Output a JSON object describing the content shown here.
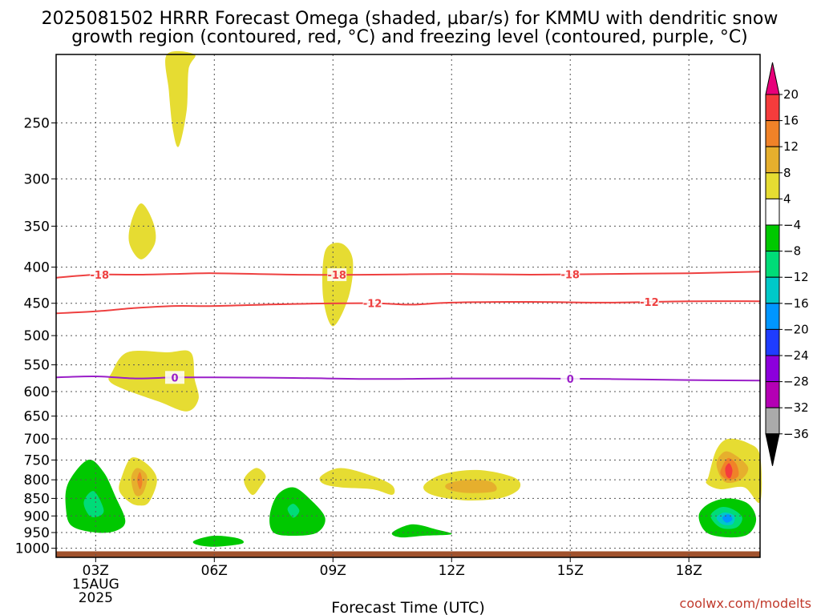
{
  "chart_data": {
    "type": "contour",
    "title_line1": "2025081502 HRRR Forecast Omega (shaded, µbar/s) for KMMU with dendritic snow",
    "title_line2": "growth region (contoured, red, °C) and freezing level (contoured, purple, °C)",
    "xlabel": "Forecast Time (UTC)",
    "credit": "coolwx.com/modelts",
    "x_ticks": [
      {
        "hour": 3,
        "label": "03Z",
        "sub1": "15AUG",
        "sub2": "2025"
      },
      {
        "hour": 6,
        "label": "06Z"
      },
      {
        "hour": 9,
        "label": "09Z"
      },
      {
        "hour": 12,
        "label": "12Z"
      },
      {
        "hour": 15,
        "label": "15Z"
      },
      {
        "hour": 18,
        "label": "18Z"
      }
    ],
    "x_range_hours": [
      2.0,
      19.8
    ],
    "y_ticks": [
      250,
      300,
      350,
      400,
      450,
      500,
      550,
      600,
      650,
      700,
      750,
      800,
      850,
      900,
      950,
      1000
    ],
    "y_range_hpa": [
      200,
      1030
    ],
    "y_scale": "log-pressure",
    "colorbar": {
      "levels": [
        "20",
        "16",
        "12",
        "8",
        "4",
        "−4",
        "−8",
        "−12",
        "−16",
        "−20",
        "−24",
        "−28",
        "−32",
        "−36"
      ],
      "colors": [
        "#e8007a",
        "#f53c3c",
        "#f08228",
        "#e6af2d",
        "#e6dc32",
        "#ffffff",
        "#00c800",
        "#00dc78",
        "#00c8c8",
        "#0096ff",
        "#1e3cff",
        "#8c00dc",
        "#b400b4",
        "#aaaaaa",
        "#000000"
      ]
    },
    "contours": [
      {
        "name": "dgz-minus18",
        "color": "#ee4040",
        "label": "-18",
        "points": [
          [
            2,
            414
          ],
          [
            3,
            410
          ],
          [
            4,
            410
          ],
          [
            5,
            409
          ],
          [
            6,
            408
          ],
          [
            8,
            410
          ],
          [
            10,
            410
          ],
          [
            12,
            409
          ],
          [
            14,
            410
          ],
          [
            16,
            409
          ],
          [
            18,
            408
          ],
          [
            19.8,
            406
          ]
        ],
        "label_hours": [
          3.1,
          9.1,
          15.0
        ]
      },
      {
        "name": "dgz-minus12",
        "color": "#ee4040",
        "label": "-12",
        "points": [
          [
            2,
            465
          ],
          [
            3,
            462
          ],
          [
            4,
            457
          ],
          [
            5,
            454
          ],
          [
            6,
            454
          ],
          [
            8,
            451
          ],
          [
            10,
            450
          ],
          [
            11,
            452
          ],
          [
            12,
            449
          ],
          [
            14,
            448
          ],
          [
            16,
            449
          ],
          [
            18,
            447
          ],
          [
            19.8,
            447
          ]
        ],
        "label_hours": [
          10.0,
          17.0
        ]
      },
      {
        "name": "freezing-level",
        "color": "#9a1ec8",
        "label": "0",
        "points": [
          [
            2,
            573
          ],
          [
            3,
            571
          ],
          [
            4,
            575
          ],
          [
            5,
            573
          ],
          [
            6,
            573
          ],
          [
            8,
            574
          ],
          [
            10,
            576
          ],
          [
            12,
            575
          ],
          [
            14,
            575
          ],
          [
            16,
            576
          ],
          [
            18,
            578
          ],
          [
            19.8,
            579
          ]
        ],
        "label_hours": [
          5.0,
          15.0
        ]
      }
    ],
    "shaded_regions": [
      {
        "level": 4,
        "points": [
          [
            4.8,
            200
          ],
          [
            5.5,
            200
          ],
          [
            5.35,
            210
          ],
          [
            5.3,
            240
          ],
          [
            5.1,
            270
          ],
          [
            4.95,
            255
          ],
          [
            4.85,
            225
          ]
        ]
      },
      {
        "level": 4,
        "points": [
          [
            3.9,
            345
          ],
          [
            4.15,
            325
          ],
          [
            4.45,
            345
          ],
          [
            4.5,
            370
          ],
          [
            4.15,
            390
          ],
          [
            3.85,
            370
          ]
        ]
      },
      {
        "level": 4,
        "points": [
          [
            8.8,
            380
          ],
          [
            9.2,
            370
          ],
          [
            9.5,
            390
          ],
          [
            9.4,
            440
          ],
          [
            9.0,
            485
          ],
          [
            8.75,
            440
          ]
        ]
      },
      {
        "level": 4,
        "points": [
          [
            3.4,
            565
          ],
          [
            3.8,
            528
          ],
          [
            4.8,
            528
          ],
          [
            5.4,
            528
          ],
          [
            5.5,
            575
          ],
          [
            5.6,
            615
          ],
          [
            5.3,
            640
          ],
          [
            4.6,
            620
          ],
          [
            3.7,
            595
          ],
          [
            3.35,
            580
          ]
        ]
      },
      {
        "level": -8,
        "points": [
          [
            2.3,
            810
          ],
          [
            2.8,
            750
          ],
          [
            3.2,
            780
          ],
          [
            3.5,
            845
          ],
          [
            3.75,
            915
          ],
          [
            3.5,
            945
          ],
          [
            3.0,
            950
          ],
          [
            2.4,
            930
          ],
          [
            2.25,
            880
          ]
        ]
      },
      {
        "level": -12,
        "points": [
          [
            2.7,
            860
          ],
          [
            2.95,
            830
          ],
          [
            3.2,
            880
          ],
          [
            3.1,
            900
          ],
          [
            2.85,
            900
          ]
        ]
      },
      {
        "level": 4,
        "points": [
          [
            3.65,
            795
          ],
          [
            3.9,
            745
          ],
          [
            4.3,
            760
          ],
          [
            4.55,
            800
          ],
          [
            4.35,
            860
          ],
          [
            4.1,
            870
          ],
          [
            3.85,
            860
          ],
          [
            3.6,
            830
          ]
        ]
      },
      {
        "level": 8,
        "points": [
          [
            3.9,
            795
          ],
          [
            4.05,
            770
          ],
          [
            4.3,
            790
          ],
          [
            4.2,
            835
          ],
          [
            4.0,
            840
          ]
        ]
      },
      {
        "level": 12,
        "points": [
          [
            4.05,
            800
          ],
          [
            4.12,
            780
          ],
          [
            4.18,
            805
          ],
          [
            4.12,
            825
          ]
        ]
      },
      {
        "level": 4,
        "points": [
          [
            6.75,
            800
          ],
          [
            7.05,
            770
          ],
          [
            7.3,
            790
          ],
          [
            7.15,
            820
          ],
          [
            6.95,
            840
          ]
        ]
      },
      {
        "level": -8,
        "points": [
          [
            7.4,
            900
          ],
          [
            7.6,
            840
          ],
          [
            8.0,
            820
          ],
          [
            8.4,
            850
          ],
          [
            8.8,
            905
          ],
          [
            8.6,
            950
          ],
          [
            8.0,
            960
          ],
          [
            7.5,
            950
          ]
        ]
      },
      {
        "level": -12,
        "points": [
          [
            7.85,
            880
          ],
          [
            8.0,
            865
          ],
          [
            8.15,
            885
          ],
          [
            8.0,
            905
          ]
        ]
      },
      {
        "level": 4,
        "points": [
          [
            8.7,
            790
          ],
          [
            9.2,
            770
          ],
          [
            10.0,
            790
          ],
          [
            10.5,
            815
          ],
          [
            10.5,
            840
          ],
          [
            10.0,
            825
          ],
          [
            9.2,
            820
          ],
          [
            8.75,
            810
          ]
        ]
      },
      {
        "level": 4,
        "points": [
          [
            11.3,
            815
          ],
          [
            11.8,
            785
          ],
          [
            12.7,
            775
          ],
          [
            13.6,
            795
          ],
          [
            13.7,
            825
          ],
          [
            13.2,
            850
          ],
          [
            12.3,
            855
          ],
          [
            11.5,
            840
          ]
        ]
      },
      {
        "level": 8,
        "points": [
          [
            11.9,
            810
          ],
          [
            12.4,
            800
          ],
          [
            13.0,
            805
          ],
          [
            13.1,
            830
          ],
          [
            12.4,
            835
          ],
          [
            11.9,
            825
          ]
        ]
      },
      {
        "level": -8,
        "points": [
          [
            5.5,
            975
          ],
          [
            6.0,
            960
          ],
          [
            6.6,
            968
          ],
          [
            6.7,
            985
          ],
          [
            6.0,
            995
          ],
          [
            5.55,
            988
          ]
        ]
      },
      {
        "level": -8,
        "points": [
          [
            10.5,
            950
          ],
          [
            11.0,
            925
          ],
          [
            11.6,
            940
          ],
          [
            12.0,
            955
          ],
          [
            11.3,
            960
          ],
          [
            10.7,
            965
          ]
        ]
      },
      {
        "level": 4,
        "points": [
          [
            18.5,
            790
          ],
          [
            18.7,
            725
          ],
          [
            19.0,
            700
          ],
          [
            19.5,
            710
          ],
          [
            19.8,
            740
          ],
          [
            19.8,
            860
          ],
          [
            19.4,
            820
          ],
          [
            18.8,
            825
          ],
          [
            18.45,
            810
          ]
        ]
      },
      {
        "level": 8,
        "points": [
          [
            18.7,
            760
          ],
          [
            18.9,
            730
          ],
          [
            19.2,
            740
          ],
          [
            19.5,
            770
          ],
          [
            19.3,
            800
          ],
          [
            18.9,
            805
          ]
        ]
      },
      {
        "level": 12,
        "points": [
          [
            18.85,
            765
          ],
          [
            19.0,
            745
          ],
          [
            19.2,
            760
          ],
          [
            19.25,
            790
          ],
          [
            19.0,
            800
          ],
          [
            18.8,
            785
          ]
        ]
      },
      {
        "level": 16,
        "points": [
          [
            18.92,
            770
          ],
          [
            19.02,
            758
          ],
          [
            19.1,
            775
          ],
          [
            19.05,
            795
          ],
          [
            18.95,
            790
          ]
        ]
      },
      {
        "level": -8,
        "points": [
          [
            18.25,
            900
          ],
          [
            18.5,
            865
          ],
          [
            19.0,
            850
          ],
          [
            19.5,
            865
          ],
          [
            19.7,
            910
          ],
          [
            19.5,
            955
          ],
          [
            19.0,
            965
          ],
          [
            18.45,
            950
          ]
        ]
      },
      {
        "level": -12,
        "points": [
          [
            18.55,
            900
          ],
          [
            18.8,
            875
          ],
          [
            19.1,
            880
          ],
          [
            19.35,
            905
          ],
          [
            19.2,
            935
          ],
          [
            18.8,
            935
          ]
        ]
      },
      {
        "level": -16,
        "points": [
          [
            18.7,
            905
          ],
          [
            18.9,
            890
          ],
          [
            19.15,
            900
          ],
          [
            19.1,
            925
          ],
          [
            18.85,
            925
          ]
        ]
      },
      {
        "level": -20,
        "points": [
          [
            18.85,
            905
          ],
          [
            19.0,
            895
          ],
          [
            19.1,
            910
          ],
          [
            18.95,
            920
          ]
        ]
      }
    ],
    "terrain_top_hpa": 1010,
    "terrain_color": "#a0522d"
  }
}
